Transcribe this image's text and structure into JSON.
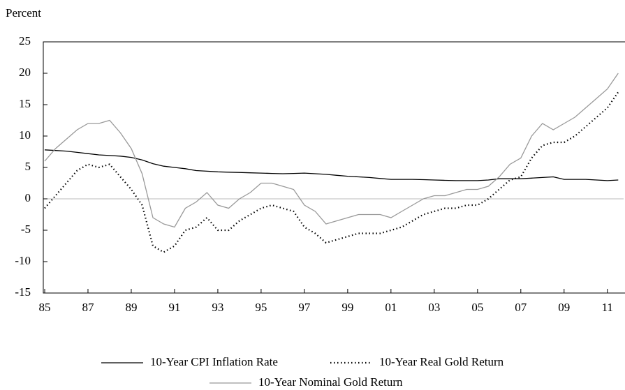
{
  "chart_data": {
    "type": "line",
    "ylabel": "Percent",
    "x": [
      1985,
      1985.5,
      1986,
      1986.5,
      1987,
      1987.5,
      1988,
      1988.5,
      1989,
      1989.5,
      1990,
      1990.5,
      1991,
      1991.5,
      1992,
      1992.5,
      1993,
      1993.5,
      1994,
      1994.5,
      1995,
      1995.5,
      1996,
      1996.5,
      1997,
      1997.5,
      1998,
      1998.5,
      1999,
      1999.5,
      2000,
      2000.5,
      2001,
      2001.5,
      2002,
      2002.5,
      2003,
      2003.5,
      2004,
      2004.5,
      2005,
      2005.5,
      2006,
      2006.5,
      2007,
      2007.5,
      2008,
      2008.5,
      2009,
      2009.5,
      2010,
      2010.5,
      2011,
      2011.5
    ],
    "series": [
      {
        "name": "10-Year CPI Inflation Rate",
        "color": "#000000",
        "linestyle": "solid",
        "values": [
          7.8,
          7.7,
          7.6,
          7.4,
          7.2,
          7.0,
          6.9,
          6.8,
          6.6,
          6.2,
          5.6,
          5.2,
          5.0,
          4.8,
          4.5,
          4.4,
          4.3,
          4.25,
          4.2,
          4.15,
          4.1,
          4.05,
          4.0,
          4.05,
          4.1,
          4.0,
          3.9,
          3.75,
          3.6,
          3.5,
          3.4,
          3.25,
          3.1,
          3.1,
          3.1,
          3.05,
          3.0,
          2.95,
          2.9,
          2.9,
          2.9,
          3.0,
          3.2,
          3.2,
          3.2,
          3.3,
          3.4,
          3.5,
          3.1,
          3.1,
          3.1,
          3.0,
          2.9,
          3.0
        ]
      },
      {
        "name": "10-Year Real Gold Return",
        "color": "#000000",
        "linestyle": "dotted",
        "values": [
          -1.5,
          0.5,
          2.5,
          4.5,
          5.5,
          5,
          5.5,
          3.5,
          1.5,
          -1,
          -7.5,
          -8.5,
          -7.5,
          -5,
          -4.5,
          -3,
          -5,
          -5,
          -3.5,
          -2.5,
          -1.5,
          -1,
          -1.5,
          -2,
          -4.5,
          -5.5,
          -7,
          -6.5,
          -6,
          -5.5,
          -5.5,
          -5.5,
          -5,
          -4.5,
          -3.5,
          -2.5,
          -2,
          -1.5,
          -1.5,
          -1,
          -1,
          0,
          1.5,
          3,
          3.5,
          6.5,
          8.5,
          9,
          9,
          10,
          11.5,
          13,
          14.5,
          17
        ]
      },
      {
        "name": "10-Year Nominal Gold Return",
        "color": "#999999",
        "linestyle": "solid",
        "values": [
          6,
          8,
          9.5,
          11,
          12,
          12,
          12.5,
          10.5,
          8,
          4,
          -3,
          -4,
          -4.5,
          -1.5,
          -0.5,
          1,
          -1,
          -1.5,
          0,
          1,
          2.5,
          2.5,
          2,
          1.5,
          -1,
          -2,
          -4,
          -3.5,
          -3,
          -2.5,
          -2.5,
          -2.5,
          -3,
          -2,
          -1,
          0,
          0.5,
          0.5,
          1,
          1.5,
          1.5,
          2,
          3.5,
          5.5,
          6.5,
          10,
          12,
          11,
          12,
          13,
          14.5,
          16,
          17.5,
          20
        ]
      }
    ],
    "xlim": [
      1985,
      2011.75
    ],
    "xticks": [
      {
        "value": 1985,
        "label": "85"
      },
      {
        "value": 1987,
        "label": "87"
      },
      {
        "value": 1989,
        "label": "89"
      },
      {
        "value": 1991,
        "label": "91"
      },
      {
        "value": 1993,
        "label": "93"
      },
      {
        "value": 1995,
        "label": "95"
      },
      {
        "value": 1997,
        "label": "97"
      },
      {
        "value": 1999,
        "label": "99"
      },
      {
        "value": 2001,
        "label": "01"
      },
      {
        "value": 2003,
        "label": "03"
      },
      {
        "value": 2005,
        "label": "05"
      },
      {
        "value": 2007,
        "label": "07"
      },
      {
        "value": 2009,
        "label": "09"
      },
      {
        "value": 2011,
        "label": "11"
      }
    ],
    "ylim": [
      -15,
      25
    ],
    "yticks": [
      -15,
      -10,
      -5,
      0,
      5,
      10,
      15,
      20,
      25
    ],
    "zero_line": true
  }
}
